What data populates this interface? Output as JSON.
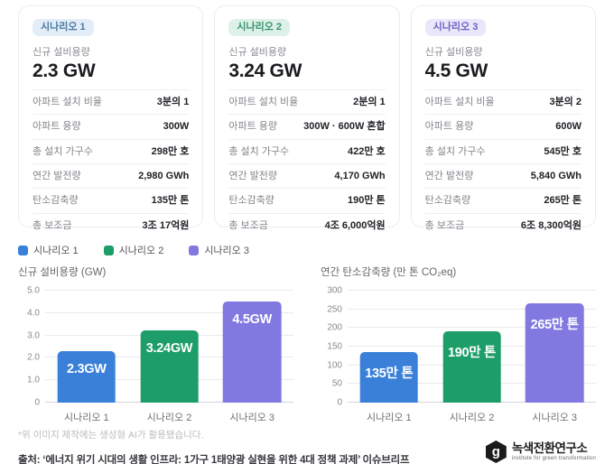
{
  "cards": [
    {
      "badge": "시나리오 1",
      "capacity_label": "신규 설비용량",
      "capacity_value": "2.3 GW",
      "colors": {
        "badge_bg": "#e2edf8",
        "badge_text": "#49799f"
      },
      "rows": [
        {
          "label": "아파트 설치 비율",
          "value": "3분의 1"
        },
        {
          "label": "아파트 용량",
          "value": "300W"
        },
        {
          "label": "총 설치 가구수",
          "value": "298만 호"
        },
        {
          "label": "연간 발전량",
          "value": "2,980 GWh"
        },
        {
          "label": "탄소감축량",
          "value": "135만 톤"
        },
        {
          "label": "총 보조금",
          "value": "3조 17억원"
        }
      ]
    },
    {
      "badge": "시나리오 2",
      "capacity_label": "신규 설비용량",
      "capacity_value": "3.24 GW",
      "colors": {
        "badge_bg": "#def1e8",
        "badge_text": "#36926c"
      },
      "rows": [
        {
          "label": "아파트 설치 비율",
          "value": "2분의 1"
        },
        {
          "label": "아파트 용량",
          "value": "300W · 600W 혼합"
        },
        {
          "label": "총 설치 가구수",
          "value": "422만 호"
        },
        {
          "label": "연간 발전량",
          "value": "4,170 GWh"
        },
        {
          "label": "탄소감축량",
          "value": "190만 톤"
        },
        {
          "label": "총 보조금",
          "value": "4조 6,000억원"
        }
      ]
    },
    {
      "badge": "시나리오 3",
      "capacity_label": "신규 설비용량",
      "capacity_value": "4.5 GW",
      "colors": {
        "badge_bg": "#e9e7fa",
        "badge_text": "#6c62c4"
      },
      "rows": [
        {
          "label": "아파트 설치 비율",
          "value": "3분의 2"
        },
        {
          "label": "아파트 용량",
          "value": "600W"
        },
        {
          "label": "총 설치 가구수",
          "value": "545만 호"
        },
        {
          "label": "연간 발전량",
          "value": "5,840 GWh"
        },
        {
          "label": "탄소감축량",
          "value": "265만 톤"
        },
        {
          "label": "총 보조금",
          "value": "6조 8,300억원"
        }
      ]
    }
  ],
  "legend": [
    {
      "label": "시나리오 1",
      "color": "#3a80d9"
    },
    {
      "label": "시나리오 2",
      "color": "#1d9e68"
    },
    {
      "label": "시나리오 3",
      "color": "#8179e0"
    }
  ],
  "chart_data": [
    {
      "type": "bar",
      "title": "신규 설비용량 (GW)",
      "categories": [
        "시나리오 1",
        "시나리오 2",
        "시나리오 3"
      ],
      "values": [
        2.3,
        3.24,
        4.5
      ],
      "bar_labels": [
        "2.3GW",
        "3.24GW",
        "4.5GW"
      ],
      "bar_colors": [
        "#3a80d9",
        "#1d9e68",
        "#8179e0"
      ],
      "xlabel": "",
      "ylabel": "GW",
      "ylim": [
        0,
        5
      ],
      "yticks": [
        0,
        1,
        2,
        3,
        4,
        5
      ],
      "ytick_labels": [
        "0",
        "1.0",
        "2.0",
        "3.0",
        "4.0",
        "5.0"
      ],
      "grid": true,
      "legend_position": "top-left"
    },
    {
      "type": "bar",
      "title": "연간 탄소감축량 (만 톤 CO₂eq)",
      "categories": [
        "시나리오 1",
        "시나리오 2",
        "시나리오 3"
      ],
      "values": [
        135,
        190,
        265
      ],
      "bar_labels": [
        "135만 톤",
        "190만 톤",
        "265만 톤"
      ],
      "bar_colors": [
        "#3a80d9",
        "#1d9e68",
        "#8179e0"
      ],
      "xlabel": "",
      "ylabel": "만 톤 CO₂eq",
      "ylim": [
        0,
        300
      ],
      "yticks": [
        0,
        50,
        100,
        150,
        200,
        250,
        300
      ],
      "ytick_labels": [
        "0",
        "50",
        "100",
        "150",
        "200",
        "250",
        "300"
      ],
      "grid": true,
      "legend_position": "top-left"
    }
  ],
  "footer": {
    "ai_note": "*위 이미지 제작에는 생성형 AI가 활용됐습니다.",
    "source": "출처: ‘에너지 위기 시대의 생활 인프라: 1가구 1태양광 실현을 위한 4대 정책 과제’ 이슈브리프",
    "logo": {
      "glyph": "g",
      "name": "녹색전환연구소",
      "subtitle": "institute for green transformation"
    }
  }
}
